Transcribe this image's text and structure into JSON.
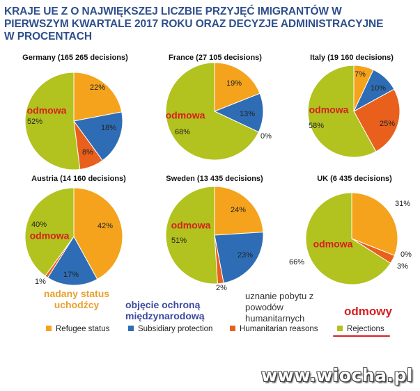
{
  "title": {
    "line1": "KRAJE UE Z O NAJWIĘKSZEJ LICZBIE PRZYJĘĆ IMIGRANTÓW W",
    "line2": "PIERWSZYM KWARTALE 2017 ROKU ORAZ DECYZJE ADMINISTRACYJNE",
    "line3": "W PROCENTACH"
  },
  "colors": {
    "refugee": "#f5a31c",
    "subsidiary": "#2e6db5",
    "humanitarian": "#e8601c",
    "rejections": "#b2c21e",
    "overlay_red": "#d62020"
  },
  "chart_data": [
    {
      "type": "pie",
      "title": "Germany (165 265 decisions)",
      "categories": [
        "Refugee  status",
        "Subsidiary protection",
        "Humanitarian reasons",
        "Rejections"
      ],
      "values": [
        22,
        18,
        8,
        52
      ],
      "data_labels": [
        "22%",
        "18%",
        "8%",
        "52%"
      ],
      "overlay_label": "odmowa"
    },
    {
      "type": "pie",
      "title": "France (27 105 decisions)",
      "categories": [
        "Refugee  status",
        "Subsidiary protection",
        "Humanitarian reasons",
        "Rejections"
      ],
      "values": [
        19,
        13,
        0,
        68
      ],
      "data_labels": [
        "19%",
        "13%",
        "0%",
        "68%"
      ],
      "overlay_label": "odmowa"
    },
    {
      "type": "pie",
      "title": "Italy (19 160 decisions)",
      "categories": [
        "Refugee  status",
        "Subsidiary protection",
        "Humanitarian reasons",
        "Rejections"
      ],
      "values": [
        7,
        10,
        25,
        58
      ],
      "data_labels": [
        "7%",
        "10%",
        "25%",
        "58%"
      ],
      "overlay_label": "odmowa"
    },
    {
      "type": "pie",
      "title": "Austria (14 160 decisions)",
      "categories": [
        "Refugee  status",
        "Subsidiary protection",
        "Humanitarian reasons",
        "Rejections"
      ],
      "values": [
        42,
        17,
        1,
        40
      ],
      "data_labels": [
        "42%",
        "17%",
        "1%",
        "40%"
      ],
      "overlay_label": "odmowa"
    },
    {
      "type": "pie",
      "title": "Sweden (13 435 decisions)",
      "categories": [
        "Refugee  status",
        "Subsidiary protection",
        "Humanitarian reasons",
        "Rejections"
      ],
      "values": [
        24,
        23,
        2,
        51
      ],
      "data_labels": [
        "24%",
        "23%",
        "2%",
        "51%"
      ],
      "overlay_label": "odmowa"
    },
    {
      "type": "pie",
      "title": "UK (6 435 decisions)",
      "categories": [
        "Refugee  status",
        "Subsidiary protection",
        "Humanitarian reasons",
        "Rejections"
      ],
      "values": [
        31,
        0,
        3,
        66
      ],
      "data_labels": [
        "31%",
        "0%",
        "3%",
        "66%"
      ],
      "overlay_label": "odmowa"
    }
  ],
  "notes": {
    "refugee": "nadany status uchodźcy",
    "subsidiary": "objęcie ochroną międzynarodową",
    "humanitarian": "uznanie pobytu z powodów humanitarnych",
    "rejections": "odmowy"
  },
  "legend": {
    "refugee": "Refugee  status",
    "subsidiary": "Subsidiary protection",
    "humanitarian": "Humanitarian reasons",
    "rejections": "Rejections"
  },
  "watermark": "www.wiocha.pl"
}
